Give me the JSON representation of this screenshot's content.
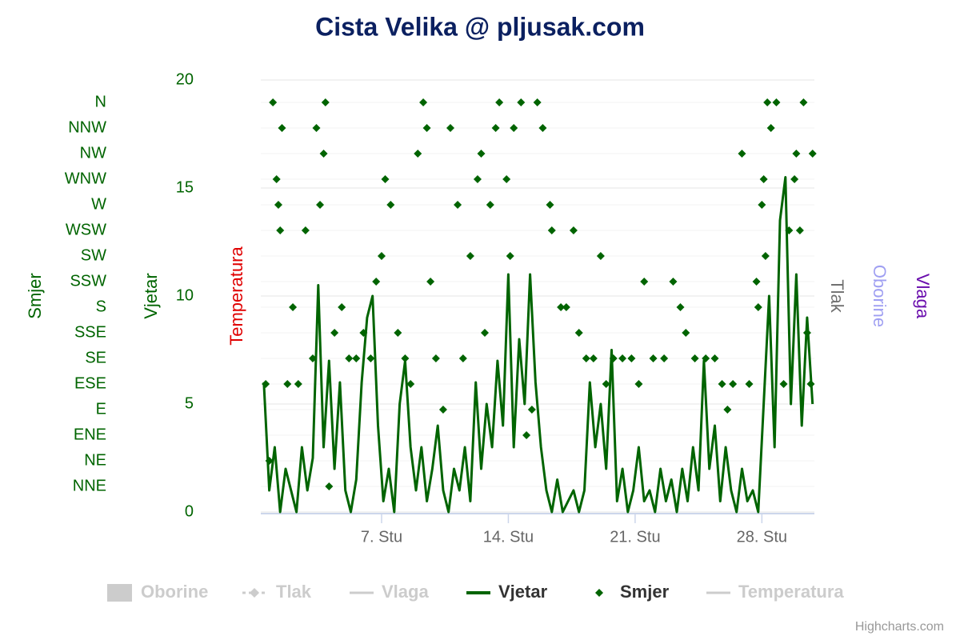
{
  "chart_data": {
    "type": "combo",
    "title": "Cista Velika @ pljusak.com",
    "credits": "Highcharts.com",
    "xlim": [
      0.33,
      30.9
    ],
    "xticks": [
      {
        "value": 7,
        "label": "7. Stu"
      },
      {
        "value": 14,
        "label": "14. Stu"
      },
      {
        "value": 21,
        "label": "21. Stu"
      },
      {
        "value": 28,
        "label": "28. Stu"
      }
    ],
    "ylim": [
      0,
      20
    ],
    "yticks": [
      0,
      5,
      10,
      15,
      20
    ],
    "y2lim": [
      0,
      379.6875
    ],
    "y2ticks": [
      {
        "value": 22.5,
        "label": "NNE"
      },
      {
        "value": 45,
        "label": "NE"
      },
      {
        "value": 67.5,
        "label": "ENE"
      },
      {
        "value": 90,
        "label": "E"
      },
      {
        "value": 112.5,
        "label": "ESE"
      },
      {
        "value": 135,
        "label": "SE"
      },
      {
        "value": 157.5,
        "label": "SSE"
      },
      {
        "value": 180,
        "label": "S"
      },
      {
        "value": 202.5,
        "label": "SSW"
      },
      {
        "value": 225,
        "label": "SW"
      },
      {
        "value": 247.5,
        "label": "WSW"
      },
      {
        "value": 270,
        "label": "W"
      },
      {
        "value": 292.5,
        "label": "WNW"
      },
      {
        "value": 315,
        "label": "NW"
      },
      {
        "value": 337.5,
        "label": "NNW"
      },
      {
        "value": 360,
        "label": "N"
      }
    ],
    "grid": true,
    "series": [
      {
        "name": "Oborine",
        "type": "column",
        "visible": false,
        "color": "#9f9ff2"
      },
      {
        "name": "Tlak",
        "type": "line",
        "dashed": true,
        "marker": true,
        "visible": false,
        "color": "#707070"
      },
      {
        "name": "Vlaga",
        "type": "line",
        "visible": false,
        "color": "#6a0dad"
      },
      {
        "name": "Vjetar",
        "type": "line",
        "visible": true,
        "axis": "y",
        "color": "#006400",
        "x": [
          0.5,
          0.8,
          1.1,
          1.4,
          1.7,
          2,
          2.3,
          2.6,
          2.9,
          3.2,
          3.5,
          3.8,
          4.1,
          4.4,
          4.7,
          5,
          5.3,
          5.6,
          5.9,
          6.2,
          6.5,
          6.8,
          7.1,
          7.4,
          7.7,
          8,
          8.3,
          8.6,
          8.9,
          9.2,
          9.5,
          9.8,
          10.1,
          10.4,
          10.7,
          11,
          11.3,
          11.6,
          11.9,
          12.2,
          12.5,
          12.8,
          13.1,
          13.4,
          13.7,
          14,
          14.3,
          14.6,
          14.9,
          15.2,
          15.5,
          15.8,
          16.1,
          16.4,
          16.7,
          17,
          17.3,
          17.6,
          17.9,
          18.2,
          18.5,
          18.8,
          19.1,
          19.4,
          19.7,
          20,
          20.3,
          20.6,
          20.9,
          21.2,
          21.5,
          21.8,
          22.1,
          22.4,
          22.7,
          23,
          23.3,
          23.6,
          23.9,
          24.2,
          24.5,
          24.8,
          25.1,
          25.4,
          25.7,
          26,
          26.3,
          26.6,
          26.9,
          27.2,
          27.5,
          27.8,
          28.1,
          28.4,
          28.7,
          29,
          29.3,
          29.6,
          29.9,
          30.2,
          30.5,
          30.8
        ],
        "values": [
          6,
          1,
          3,
          0,
          2,
          1,
          0,
          3,
          1,
          2.5,
          10.5,
          3,
          7,
          2,
          6,
          1,
          0,
          1.5,
          6,
          9,
          10,
          4,
          0.5,
          2,
          0,
          5,
          7,
          3,
          1,
          3,
          0.5,
          2,
          4,
          1,
          0,
          2,
          1,
          3,
          0.5,
          6,
          2,
          5,
          3,
          7,
          4,
          11,
          3,
          8,
          5,
          11,
          6,
          3,
          1,
          0,
          1.5,
          0,
          0.5,
          1,
          0,
          1,
          6,
          3,
          5,
          2,
          7.5,
          0.5,
          2,
          0,
          1,
          3,
          0.5,
          1,
          0,
          2,
          0.5,
          1.5,
          0,
          2,
          0.5,
          3,
          1,
          7,
          2,
          4,
          0.5,
          3,
          1,
          0,
          2,
          0.5,
          1,
          0,
          5,
          10,
          3,
          13.5,
          15.5,
          5,
          11,
          4,
          9,
          5
        ]
      },
      {
        "name": "Smjer",
        "type": "scatter",
        "visible": true,
        "axis": "y2",
        "color": "#006400",
        "x": [
          0.6,
          0.8,
          1.0,
          1.2,
          1.3,
          1.4,
          1.5,
          1.8,
          2.1,
          2.4,
          2.8,
          3.2,
          3.4,
          3.6,
          3.8,
          3.9,
          4.1,
          4.4,
          4.8,
          5.2,
          5.6,
          6.0,
          6.4,
          6.7,
          7.0,
          7.2,
          7.5,
          7.9,
          8.3,
          8.6,
          9.0,
          9.3,
          9.5,
          9.7,
          10.0,
          10.4,
          10.8,
          11.2,
          11.5,
          11.9,
          12.3,
          12.5,
          12.7,
          13.0,
          13.3,
          13.5,
          13.9,
          14.1,
          14.3,
          14.7,
          15.0,
          15.3,
          15.6,
          15.9,
          16.3,
          16.4,
          16.9,
          17.2,
          17.6,
          17.9,
          18.3,
          18.7,
          19.1,
          19.4,
          19.8,
          20.3,
          20.8,
          21.2,
          21.5,
          22.0,
          22.6,
          23.1,
          23.5,
          23.8,
          24.3,
          24.9,
          25.4,
          25.8,
          26.1,
          26.4,
          26.9,
          27.3,
          27.7,
          27.8,
          28.0,
          28.1,
          28.2,
          28.3,
          28.5,
          28.8,
          29.2,
          29.5,
          29.8,
          29.9,
          30.1,
          30.3,
          30.5,
          30.7,
          30.8
        ],
        "values": [
          112.5,
          45,
          360,
          292.5,
          270,
          247.5,
          337.5,
          112.5,
          180,
          112.5,
          247.5,
          135,
          337.5,
          270,
          315,
          360,
          22.5,
          157.5,
          180,
          135,
          135,
          157.5,
          135,
          202.5,
          225,
          292.5,
          270,
          157.5,
          135,
          112.5,
          315,
          360,
          337.5,
          202.5,
          135,
          90,
          337.5,
          270,
          135,
          225,
          292.5,
          315,
          157.5,
          270,
          337.5,
          360,
          292.5,
          225,
          337.5,
          360,
          67.5,
          90,
          360,
          337.5,
          270,
          247.5,
          180,
          180,
          247.5,
          157.5,
          135,
          135,
          225,
          112.5,
          135,
          135,
          135,
          112.5,
          202.5,
          135,
          135,
          202.5,
          180,
          157.5,
          135,
          135,
          135,
          112.5,
          90,
          112.5,
          315,
          112.5,
          202.5,
          180,
          270,
          292.5,
          225,
          360,
          337.5,
          360,
          112.5,
          247.5,
          292.5,
          315,
          247.5,
          360,
          157.5,
          112.5,
          315
        ]
      },
      {
        "name": "Temperatura",
        "type": "line",
        "visible": false,
        "color": "#e00000"
      }
    ]
  }
}
